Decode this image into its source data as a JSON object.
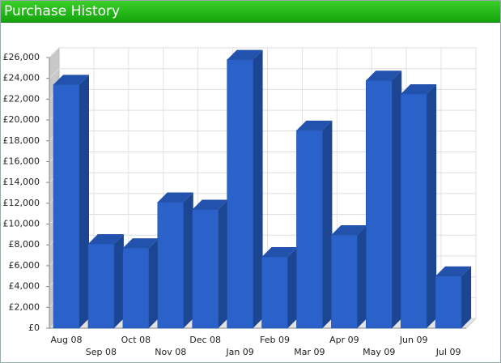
{
  "chart_data": {
    "type": "bar",
    "title": "Purchase History",
    "categories": [
      "Aug 08",
      "Sep 08",
      "Oct 08",
      "Nov 08",
      "Dec 08",
      "Jan 09",
      "Feb 09",
      "Mar 09",
      "Apr 09",
      "May 09",
      "Jun 09",
      "Jul 09"
    ],
    "values": [
      23400,
      8100,
      7700,
      12100,
      11400,
      25800,
      6850,
      19000,
      8950,
      23800,
      22500,
      5000
    ],
    "color": "#2a62c9",
    "ylim": [
      0,
      26000
    ],
    "yticks": [
      {
        "value": 0,
        "label": "£0"
      },
      {
        "value": 2000,
        "label": "£2,000"
      },
      {
        "value": 4000,
        "label": "£4,000"
      },
      {
        "value": 6000,
        "label": "£6,000"
      },
      {
        "value": 8000,
        "label": "£8,000"
      },
      {
        "value": 10000,
        "label": "£10,000"
      },
      {
        "value": 12000,
        "label": "£12,000"
      },
      {
        "value": 14000,
        "label": "£14,000"
      },
      {
        "value": 16000,
        "label": "£16,000"
      },
      {
        "value": 18000,
        "label": "£18,000"
      },
      {
        "value": 20000,
        "label": "£20,000"
      },
      {
        "value": 22000,
        "label": "£22,000"
      },
      {
        "value": 24000,
        "label": "£24,000"
      },
      {
        "value": 26000,
        "label": "£26,000"
      }
    ],
    "grid": true
  }
}
